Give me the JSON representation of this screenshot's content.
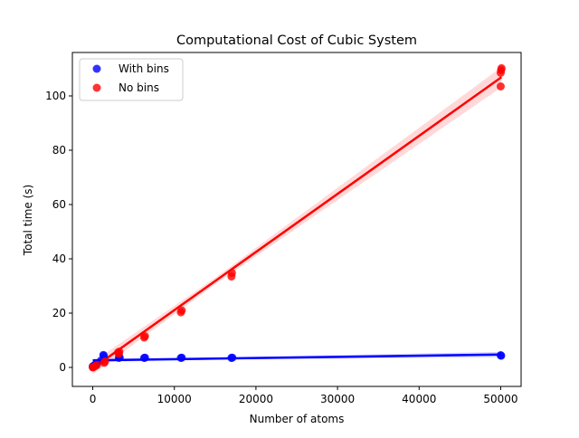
{
  "chart_data": {
    "type": "scatter",
    "title": "Computational Cost of Cubic System",
    "xlabel": "Number of atoms",
    "ylabel": "Total time (s)",
    "xlim": [
      -2500,
      52500
    ],
    "ylim": [
      -7,
      116
    ],
    "xticks": [
      0,
      10000,
      20000,
      30000,
      40000,
      50000
    ],
    "yticks": [
      0,
      20,
      40,
      60,
      80,
      100
    ],
    "grid": false,
    "legend_position": "top-left",
    "series": [
      {
        "name": "With bins",
        "color": "#0000ff",
        "points": [
          [
            0,
            0.3
          ],
          [
            30,
            0.4
          ],
          [
            100,
            0.5
          ],
          [
            200,
            0.8
          ],
          [
            400,
            1.0
          ],
          [
            1000,
            2.5
          ],
          [
            1300,
            4.6
          ],
          [
            1350,
            4.2
          ],
          [
            3200,
            3.5
          ],
          [
            3300,
            3.7
          ],
          [
            6300,
            3.5
          ],
          [
            6400,
            3.6
          ],
          [
            10800,
            3.5
          ],
          [
            10900,
            3.6
          ],
          [
            17000,
            3.5
          ],
          [
            17100,
            3.6
          ],
          [
            50000,
            4.5
          ],
          [
            50050,
            4.3
          ]
        ],
        "fit": {
          "slope": 4.3e-05,
          "intercept": 2.6
        }
      },
      {
        "name": "No bins",
        "color": "#ff0000",
        "points": [
          [
            0,
            0.0
          ],
          [
            30,
            0.1
          ],
          [
            100,
            0.2
          ],
          [
            300,
            0.5
          ],
          [
            500,
            0.9
          ],
          [
            1400,
            1.7
          ],
          [
            1500,
            2.2
          ],
          [
            3100,
            5.5
          ],
          [
            3200,
            5.0
          ],
          [
            3250,
            5.8
          ],
          [
            6300,
            11.0
          ],
          [
            6400,
            11.5
          ],
          [
            10800,
            20.3
          ],
          [
            10900,
            21.0
          ],
          [
            17000,
            33.5
          ],
          [
            17050,
            34.8
          ],
          [
            50000,
            103.5
          ],
          [
            50000,
            108.5
          ],
          [
            50050,
            109.5
          ],
          [
            50100,
            110.2
          ]
        ],
        "fit": {
          "slope": 0.00214,
          "intercept": -0.3
        }
      }
    ]
  }
}
